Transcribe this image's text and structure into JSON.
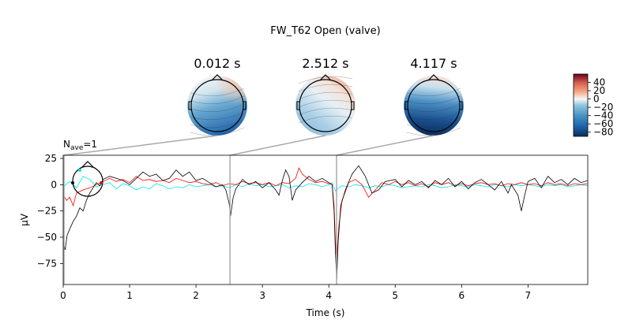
{
  "title": "FW_T62 Open (valve)",
  "nave_label": {
    "prefix": "N",
    "sub": "ave",
    "suffix": "=1"
  },
  "chart_data": {
    "type": "line",
    "xlabel": "Time (s)",
    "ylabel": "µV",
    "xlim": [
      0,
      7.9
    ],
    "ylim": [
      -95,
      28
    ],
    "x_ticks": [
      0,
      1,
      2,
      3,
      4,
      5,
      6,
      7
    ],
    "y_ticks": [
      25,
      0,
      -25,
      -50,
      -75
    ],
    "grid": false,
    "marker_times": [
      0.012,
      2.512,
      4.117
    ],
    "series": [
      {
        "color": "#000000",
        "points": [
          [
            0.0,
            -55
          ],
          [
            0.03,
            -62
          ],
          [
            0.06,
            -48
          ],
          [
            0.1,
            -42
          ],
          [
            0.15,
            -35
          ],
          [
            0.2,
            -30
          ],
          [
            0.25,
            -22
          ],
          [
            0.3,
            -25
          ],
          [
            0.35,
            -15
          ],
          [
            0.4,
            -8
          ],
          [
            0.45,
            -3
          ],
          [
            0.5,
            2
          ],
          [
            0.55,
            -1
          ],
          [
            0.6,
            5
          ],
          [
            0.7,
            8
          ],
          [
            0.8,
            6
          ],
          [
            0.9,
            4
          ],
          [
            1.0,
            0
          ],
          [
            1.1,
            6
          ],
          [
            1.2,
            12
          ],
          [
            1.3,
            8
          ],
          [
            1.4,
            10
          ],
          [
            1.5,
            4
          ],
          [
            1.6,
            6
          ],
          [
            1.7,
            14
          ],
          [
            1.8,
            8
          ],
          [
            1.9,
            12
          ],
          [
            2.0,
            4
          ],
          [
            2.1,
            6
          ],
          [
            2.2,
            2
          ],
          [
            2.3,
            -2
          ],
          [
            2.4,
            0
          ],
          [
            2.45,
            -5
          ],
          [
            2.5,
            -18
          ],
          [
            2.52,
            -30
          ],
          [
            2.56,
            -12
          ],
          [
            2.6,
            -4
          ],
          [
            2.7,
            5
          ],
          [
            2.8,
            0
          ],
          [
            2.9,
            3
          ],
          [
            3.0,
            -3
          ],
          [
            3.1,
            2
          ],
          [
            3.2,
            -5
          ],
          [
            3.25,
            -10
          ],
          [
            3.3,
            4
          ],
          [
            3.35,
            14
          ],
          [
            3.4,
            8
          ],
          [
            3.45,
            -15
          ],
          [
            3.5,
            -5
          ],
          [
            3.6,
            2
          ],
          [
            3.7,
            8
          ],
          [
            3.8,
            3
          ],
          [
            3.9,
            6
          ],
          [
            4.0,
            2
          ],
          [
            4.05,
            0
          ],
          [
            4.08,
            -25
          ],
          [
            4.1,
            -65
          ],
          [
            4.12,
            -90
          ],
          [
            4.14,
            -55
          ],
          [
            4.18,
            -20
          ],
          [
            4.25,
            -5
          ],
          [
            4.35,
            10
          ],
          [
            4.45,
            18
          ],
          [
            4.55,
            8
          ],
          [
            4.65,
            -8
          ],
          [
            4.75,
            -5
          ],
          [
            4.85,
            3
          ],
          [
            5.0,
            5
          ],
          [
            5.1,
            -2
          ],
          [
            5.2,
            4
          ],
          [
            5.3,
            0
          ],
          [
            5.4,
            3
          ],
          [
            5.5,
            -3
          ],
          [
            5.6,
            4
          ],
          [
            5.7,
            0
          ],
          [
            5.8,
            6
          ],
          [
            5.9,
            -2
          ],
          [
            6.0,
            3
          ],
          [
            6.1,
            -4
          ],
          [
            6.2,
            2
          ],
          [
            6.3,
            5
          ],
          [
            6.4,
            0
          ],
          [
            6.5,
            -5
          ],
          [
            6.6,
            3
          ],
          [
            6.7,
            -8
          ],
          [
            6.75,
            0
          ],
          [
            6.85,
            -10
          ],
          [
            6.9,
            -25
          ],
          [
            6.95,
            -10
          ],
          [
            7.0,
            3
          ],
          [
            7.1,
            6
          ],
          [
            7.2,
            -3
          ],
          [
            7.3,
            8
          ],
          [
            7.4,
            2
          ],
          [
            7.5,
            5
          ],
          [
            7.6,
            0
          ],
          [
            7.7,
            6
          ],
          [
            7.8,
            2
          ],
          [
            7.9,
            4
          ]
        ]
      },
      {
        "color": "#ff0000",
        "points": [
          [
            0.0,
            -10
          ],
          [
            0.05,
            -15
          ],
          [
            0.1,
            -12
          ],
          [
            0.15,
            -20
          ],
          [
            0.2,
            -8
          ],
          [
            0.3,
            -5
          ],
          [
            0.4,
            -3
          ],
          [
            0.5,
            0
          ],
          [
            0.6,
            3
          ],
          [
            0.7,
            6
          ],
          [
            0.8,
            3
          ],
          [
            0.9,
            5
          ],
          [
            1.0,
            2
          ],
          [
            1.1,
            8
          ],
          [
            1.2,
            4
          ],
          [
            1.3,
            5
          ],
          [
            1.4,
            3
          ],
          [
            1.5,
            4
          ],
          [
            1.6,
            2
          ],
          [
            1.7,
            6
          ],
          [
            1.8,
            4
          ],
          [
            1.9,
            2
          ],
          [
            2.0,
            3
          ],
          [
            2.1,
            1
          ],
          [
            2.2,
            0
          ],
          [
            2.3,
            2
          ],
          [
            2.4,
            -1
          ],
          [
            2.5,
            1
          ],
          [
            2.6,
            0
          ],
          [
            2.7,
            3
          ],
          [
            2.8,
            1
          ],
          [
            2.9,
            2
          ],
          [
            3.0,
            0
          ],
          [
            3.1,
            2
          ],
          [
            3.2,
            -1
          ],
          [
            3.3,
            2
          ],
          [
            3.4,
            1
          ],
          [
            3.5,
            6
          ],
          [
            3.55,
            16
          ],
          [
            3.6,
            10
          ],
          [
            3.7,
            5
          ],
          [
            3.8,
            2
          ],
          [
            3.9,
            3
          ],
          [
            4.0,
            1
          ],
          [
            4.05,
            0
          ],
          [
            4.08,
            -20
          ],
          [
            4.1,
            -55
          ],
          [
            4.12,
            -72
          ],
          [
            4.15,
            -40
          ],
          [
            4.2,
            -15
          ],
          [
            4.3,
            2
          ],
          [
            4.4,
            5
          ],
          [
            4.5,
            0
          ],
          [
            4.6,
            -12
          ],
          [
            4.7,
            -5
          ],
          [
            4.8,
            2
          ],
          [
            4.9,
            0
          ],
          [
            5.0,
            3
          ],
          [
            5.1,
            0
          ],
          [
            5.2,
            2
          ],
          [
            5.3,
            -1
          ],
          [
            5.4,
            1
          ],
          [
            5.5,
            -2
          ],
          [
            5.6,
            2
          ],
          [
            5.7,
            0
          ],
          [
            5.8,
            2
          ],
          [
            5.9,
            -1
          ],
          [
            6.0,
            1
          ],
          [
            6.1,
            -1
          ],
          [
            6.2,
            1
          ],
          [
            6.3,
            2
          ],
          [
            6.4,
            0
          ],
          [
            6.5,
            1
          ],
          [
            6.6,
            -1
          ],
          [
            6.7,
            1
          ],
          [
            6.8,
            0
          ],
          [
            6.9,
            2
          ],
          [
            7.0,
            0
          ],
          [
            7.1,
            1
          ],
          [
            7.2,
            -1
          ],
          [
            7.3,
            2
          ],
          [
            7.4,
            0
          ],
          [
            7.5,
            1
          ],
          [
            7.6,
            -1
          ],
          [
            7.7,
            1
          ],
          [
            7.8,
            0
          ],
          [
            7.9,
            1
          ]
        ]
      },
      {
        "color": "#00e5e5",
        "points": [
          [
            0.0,
            -2
          ],
          [
            0.1,
            3
          ],
          [
            0.2,
            -3
          ],
          [
            0.3,
            8
          ],
          [
            0.4,
            5
          ],
          [
            0.5,
            -2
          ],
          [
            0.6,
            0
          ],
          [
            0.7,
            2
          ],
          [
            0.8,
            -4
          ],
          [
            0.9,
            1
          ],
          [
            1.0,
            -1
          ],
          [
            1.1,
            -5
          ],
          [
            1.2,
            -2
          ],
          [
            1.3,
            -4
          ],
          [
            1.4,
            1
          ],
          [
            1.5,
            -1
          ],
          [
            1.6,
            -4
          ],
          [
            1.7,
            -2
          ],
          [
            1.8,
            -3
          ],
          [
            1.9,
            0
          ],
          [
            2.0,
            -2
          ],
          [
            2.1,
            -1
          ],
          [
            2.2,
            0
          ],
          [
            2.3,
            -2
          ],
          [
            2.4,
            -1
          ],
          [
            2.5,
            -3
          ],
          [
            2.6,
            0
          ],
          [
            2.7,
            -2
          ],
          [
            2.8,
            1
          ],
          [
            2.9,
            -1
          ],
          [
            3.0,
            0
          ],
          [
            3.1,
            -2
          ],
          [
            3.2,
            -1
          ],
          [
            3.3,
            0
          ],
          [
            3.4,
            -3
          ],
          [
            3.5,
            -1
          ],
          [
            3.6,
            -2
          ],
          [
            3.7,
            1
          ],
          [
            3.8,
            0
          ],
          [
            3.9,
            -2
          ],
          [
            4.0,
            0
          ],
          [
            4.05,
            2
          ],
          [
            4.1,
            -6
          ],
          [
            4.15,
            -3
          ],
          [
            4.2,
            -1
          ],
          [
            4.3,
            -2
          ],
          [
            4.4,
            0
          ],
          [
            4.5,
            -1
          ],
          [
            4.6,
            -3
          ],
          [
            4.7,
            -1
          ],
          [
            4.8,
            -2
          ],
          [
            4.9,
            0
          ],
          [
            5.0,
            -1
          ],
          [
            5.1,
            -3
          ],
          [
            5.2,
            -2
          ],
          [
            5.3,
            -1
          ],
          [
            5.4,
            -2
          ],
          [
            5.5,
            0
          ],
          [
            5.6,
            -1
          ],
          [
            5.7,
            -3
          ],
          [
            5.8,
            -2
          ],
          [
            5.9,
            0
          ],
          [
            6.0,
            -1
          ],
          [
            6.1,
            -2
          ],
          [
            6.2,
            0
          ],
          [
            6.3,
            -1
          ],
          [
            6.4,
            -2
          ],
          [
            6.5,
            0
          ],
          [
            6.6,
            -1
          ],
          [
            6.7,
            -2
          ],
          [
            6.8,
            0
          ],
          [
            6.9,
            -1
          ],
          [
            7.0,
            0
          ],
          [
            7.1,
            -1
          ],
          [
            7.2,
            -2
          ],
          [
            7.3,
            0
          ],
          [
            7.4,
            -1
          ],
          [
            7.5,
            0
          ],
          [
            7.6,
            -2
          ],
          [
            7.7,
            -1
          ],
          [
            7.8,
            0
          ],
          [
            7.9,
            -1
          ]
        ]
      }
    ],
    "topomaps": [
      {
        "label": "0.012 s",
        "mean_uV": -50
      },
      {
        "label": "2.512 s",
        "mean_uV": -22
      },
      {
        "label": "4.117 s",
        "mean_uV": -82
      }
    ],
    "colorbar": {
      "min": -90,
      "max": 60,
      "ticks": [
        40,
        20,
        0,
        -20,
        -40,
        -60,
        -80
      ],
      "tick_labels": [
        "40",
        "20",
        "0",
        "−20",
        "−40",
        "−60",
        "−80"
      ]
    }
  }
}
